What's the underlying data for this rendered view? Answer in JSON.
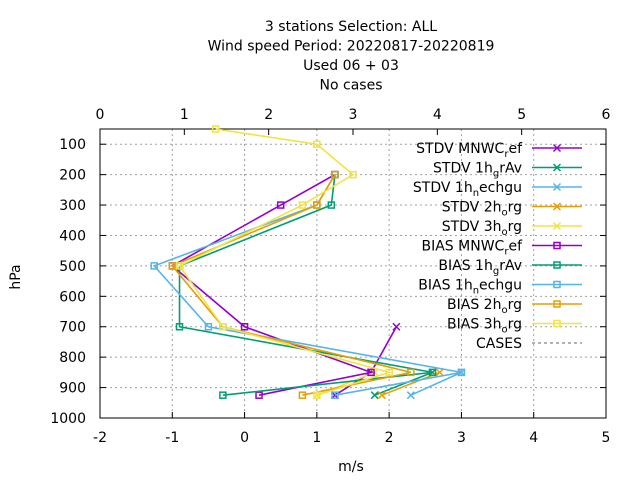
{
  "chart_data": {
    "type": "line",
    "title_lines": [
      "3 stations Selection: ALL",
      "Wind speed  Period: 20220817-20220819",
      "Used  06 + 03",
      "No cases"
    ],
    "xlabel": "m/s",
    "ylabel": "hPa",
    "xlim": [
      -2,
      5
    ],
    "ylim": [
      1000,
      50
    ],
    "x_ticks": [
      -2,
      -1,
      0,
      1,
      2,
      3,
      4,
      5
    ],
    "x_tick_labels": [
      "-2",
      "-1",
      "0",
      "1",
      "2",
      "3",
      "4",
      "5"
    ],
    "x2lim": [
      0,
      6
    ],
    "x2_ticks": [
      0,
      1,
      2,
      3,
      4,
      5,
      6
    ],
    "x2_tick_labels": [
      "0",
      "1",
      "2",
      "3",
      "4",
      "5",
      "6"
    ],
    "y_ticks": [
      100,
      200,
      300,
      400,
      500,
      600,
      700,
      800,
      900,
      1000
    ],
    "y_tick_labels": [
      "100",
      "200",
      "300",
      "400",
      "500",
      "600",
      "700",
      "800",
      "900",
      "1000"
    ],
    "grid": true,
    "legend_position": "top-right",
    "series": [
      {
        "name": "STDV MNWC_ref",
        "legend": [
          [
            "STDV MNWC",
            ""
          ],
          [
            "r",
            "sub"
          ],
          [
            "ef",
            ""
          ]
        ],
        "color": "#9400d3",
        "marker": "x",
        "points": [
          [
            2.1,
            700
          ],
          [
            1.75,
            850
          ],
          [
            1.25,
            925
          ]
        ]
      },
      {
        "name": "STDV 1h_grAv",
        "legend": [
          [
            "STDV 1h",
            ""
          ],
          [
            "g",
            "sub"
          ],
          [
            "rAv",
            ""
          ]
        ],
        "color": "#009e73",
        "marker": "x",
        "points": [
          [
            2.6,
            850
          ],
          [
            1.8,
            925
          ]
        ]
      },
      {
        "name": "STDV 1h_nechgu",
        "legend": [
          [
            "STDV 1h",
            ""
          ],
          [
            "n",
            "sub"
          ],
          [
            "echgu",
            ""
          ]
        ],
        "color": "#56b4e9",
        "marker": "x",
        "points": [
          [
            3.0,
            850
          ],
          [
            2.3,
            925
          ]
        ]
      },
      {
        "name": "STDV 2h_org",
        "legend": [
          [
            "STDV 2h",
            ""
          ],
          [
            "o",
            "sub"
          ],
          [
            "rg",
            ""
          ]
        ],
        "color": "#e69f00",
        "marker": "x",
        "points": [
          [
            2.7,
            850
          ],
          [
            1.9,
            925
          ]
        ]
      },
      {
        "name": "STDV 3h_org",
        "legend": [
          [
            "STDV 3h",
            ""
          ],
          [
            "o",
            "sub"
          ],
          [
            "rg",
            ""
          ]
        ],
        "color": "#f0e442",
        "marker": "x",
        "points": [
          [
            1.8,
            850
          ],
          [
            1.0,
            925
          ]
        ]
      },
      {
        "name": "BIAS MNWC_ref",
        "legend": [
          [
            "BIAS MNWC",
            ""
          ],
          [
            "r",
            "sub"
          ],
          [
            "ef",
            ""
          ]
        ],
        "color": "#9400d3",
        "marker": "square",
        "points": [
          [
            1.25,
            200
          ],
          [
            0.5,
            300
          ],
          [
            -1.0,
            500
          ],
          [
            0.0,
            700
          ],
          [
            1.75,
            850
          ],
          [
            0.2,
            925
          ]
        ]
      },
      {
        "name": "BIAS 1h_grAv",
        "legend": [
          [
            "BIAS 1h",
            ""
          ],
          [
            "g",
            "sub"
          ],
          [
            "rAv",
            ""
          ]
        ],
        "color": "#009e73",
        "marker": "square",
        "points": [
          [
            1.25,
            200
          ],
          [
            1.2,
            300
          ],
          [
            -0.9,
            500
          ],
          [
            -0.9,
            700
          ],
          [
            2.6,
            850
          ],
          [
            -0.3,
            925
          ]
        ]
      },
      {
        "name": "BIAS 1h_nechgu",
        "legend": [
          [
            "BIAS 1h",
            ""
          ],
          [
            "n",
            "sub"
          ],
          [
            "echgu",
            ""
          ]
        ],
        "color": "#56b4e9",
        "marker": "square",
        "points": [
          [
            1.25,
            200
          ],
          [
            1.0,
            300
          ],
          [
            -1.25,
            500
          ],
          [
            -0.5,
            700
          ],
          [
            3.0,
            850
          ],
          [
            1.25,
            925
          ]
        ]
      },
      {
        "name": "BIAS 2h_org",
        "legend": [
          [
            "BIAS 2h",
            ""
          ],
          [
            "o",
            "sub"
          ],
          [
            "rg",
            ""
          ]
        ],
        "color": "#e69f00",
        "marker": "square",
        "points": [
          [
            1.25,
            200
          ],
          [
            1.0,
            300
          ],
          [
            -1.0,
            500
          ],
          [
            -0.3,
            700
          ],
          [
            2.3,
            850
          ],
          [
            0.8,
            925
          ]
        ]
      },
      {
        "name": "BIAS 3h_org",
        "legend": [
          [
            "BIAS 3h",
            ""
          ],
          [
            "o",
            "sub"
          ],
          [
            "rg",
            ""
          ]
        ],
        "color": "#f0e442",
        "marker": "square",
        "points": [
          [
            -0.4,
            50
          ],
          [
            1.0,
            100
          ],
          [
            1.5,
            200
          ],
          [
            0.8,
            300
          ],
          [
            -0.9,
            500
          ],
          [
            -0.3,
            700
          ],
          [
            2.0,
            850
          ],
          [
            1.0,
            925
          ]
        ]
      },
      {
        "name": "CASES",
        "legend": [
          [
            "CASES",
            ""
          ]
        ],
        "color": "#999999",
        "marker": "none",
        "dashed": true,
        "points": []
      }
    ],
    "stdv_profiles": [
      {
        "color": "#9400d3",
        "points": [
          [
            2.1,
            700
          ],
          [
            1.75,
            850
          ],
          [
            1.25,
            925
          ]
        ]
      }
    ]
  }
}
